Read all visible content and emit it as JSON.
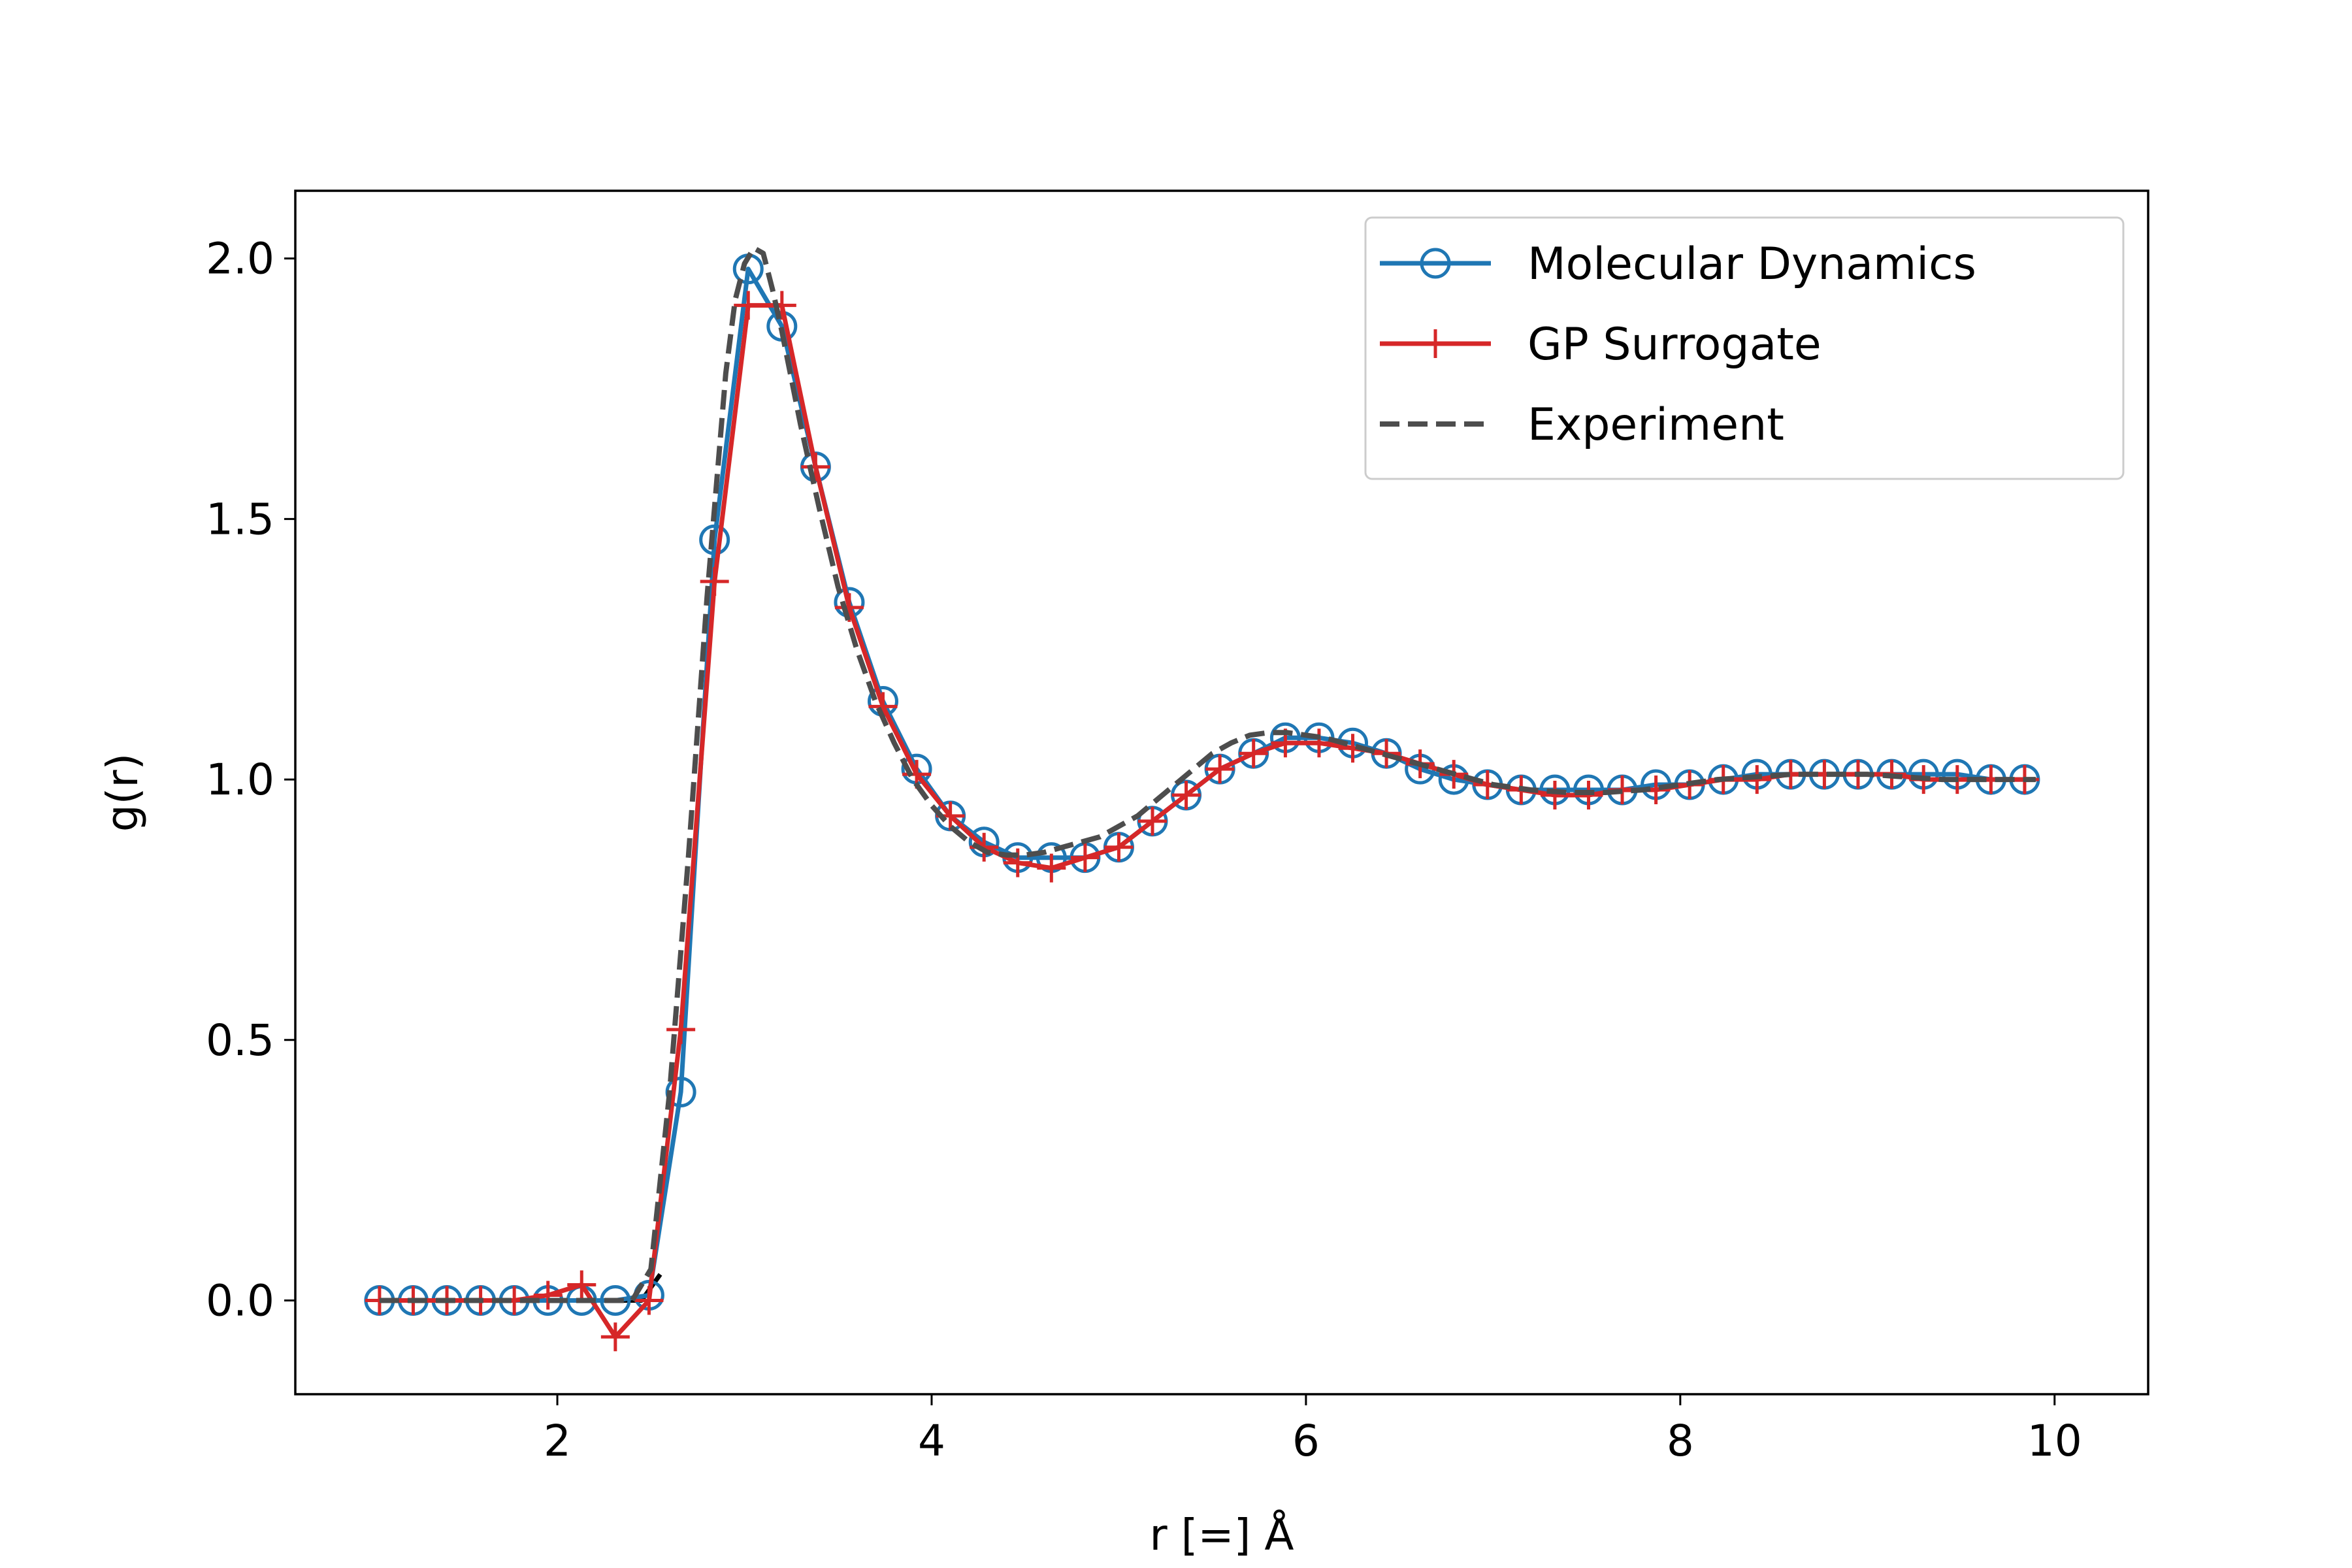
{
  "chart_data": {
    "type": "line",
    "title": "",
    "xlabel": "r [=] Å",
    "ylabel": "g(r)",
    "xlim": [
      0.6,
      10.5
    ],
    "ylim": [
      -0.18,
      2.13
    ],
    "xticks": [
      2,
      4,
      6,
      8,
      10
    ],
    "xtick_labels": [
      "2",
      "4",
      "6",
      "8",
      "10"
    ],
    "yticks": [
      0.0,
      0.5,
      1.0,
      1.5,
      2.0
    ],
    "ytick_labels": [
      "0.0",
      "0.5",
      "1.0",
      "1.5",
      "2.0"
    ],
    "grid": false,
    "legend_position": "upper right",
    "series": [
      {
        "name": "Molecular Dynamics",
        "color": "#1f77b4",
        "line_style": "solid",
        "marker": "open-circle",
        "x": [
          1.05,
          1.23,
          1.41,
          1.59,
          1.77,
          1.95,
          2.13,
          2.31,
          2.49,
          2.66,
          2.84,
          3.02,
          3.2,
          3.38,
          3.56,
          3.74,
          3.92,
          4.1,
          4.28,
          4.46,
          4.64,
          4.82,
          5.0,
          5.18,
          5.36,
          5.54,
          5.72,
          5.89,
          6.07,
          6.25,
          6.43,
          6.61,
          6.79,
          6.97,
          7.15,
          7.33,
          7.51,
          7.69,
          7.87,
          8.05,
          8.23,
          8.41,
          8.59,
          8.77,
          8.95,
          9.13,
          9.3,
          9.48,
          9.66,
          9.84
        ],
        "y": [
          0.0,
          0.0,
          0.0,
          0.0,
          0.0,
          0.0,
          0.0,
          0.0,
          0.01,
          0.4,
          1.46,
          1.98,
          1.87,
          1.6,
          1.34,
          1.15,
          1.02,
          0.93,
          0.88,
          0.85,
          0.85,
          0.85,
          0.87,
          0.92,
          0.97,
          1.02,
          1.05,
          1.08,
          1.08,
          1.07,
          1.05,
          1.02,
          1.0,
          0.99,
          0.98,
          0.98,
          0.98,
          0.98,
          0.99,
          0.99,
          1.0,
          1.01,
          1.01,
          1.01,
          1.01,
          1.01,
          1.01,
          1.01,
          1.0,
          1.0
        ]
      },
      {
        "name": "GP Surrogate",
        "color": "#d62728",
        "line_style": "solid",
        "marker": "plus",
        "x": [
          1.05,
          1.23,
          1.41,
          1.59,
          1.77,
          1.95,
          2.13,
          2.31,
          2.49,
          2.66,
          2.84,
          3.02,
          3.2,
          3.38,
          3.56,
          3.74,
          3.92,
          4.1,
          4.28,
          4.46,
          4.64,
          4.82,
          5.0,
          5.18,
          5.36,
          5.54,
          5.72,
          5.89,
          6.07,
          6.25,
          6.43,
          6.61,
          6.79,
          6.97,
          7.15,
          7.33,
          7.51,
          7.69,
          7.87,
          8.05,
          8.23,
          8.41,
          8.59,
          8.77,
          8.95,
          9.13,
          9.3,
          9.48,
          9.66,
          9.84
        ],
        "y": [
          0.0,
          0.0,
          0.0,
          0.0,
          0.0,
          0.01,
          0.03,
          -0.07,
          0.0,
          0.52,
          1.38,
          1.91,
          1.91,
          1.6,
          1.33,
          1.14,
          1.01,
          0.93,
          0.87,
          0.84,
          0.83,
          0.85,
          0.87,
          0.92,
          0.97,
          1.02,
          1.05,
          1.07,
          1.07,
          1.06,
          1.05,
          1.03,
          1.01,
          0.99,
          0.98,
          0.97,
          0.97,
          0.98,
          0.98,
          0.99,
          1.0,
          1.0,
          1.01,
          1.01,
          1.01,
          1.01,
          1.0,
          1.0,
          1.0,
          1.0
        ]
      },
      {
        "name": "Experiment",
        "color": "#4d4d4d",
        "line_style": "dashed",
        "marker": "none",
        "x": [
          1.05,
          1.5,
          2.0,
          2.3,
          2.4,
          2.5,
          2.6,
          2.7,
          2.8,
          2.9,
          2.95,
          3.0,
          3.05,
          3.1,
          3.15,
          3.2,
          3.3,
          3.4,
          3.5,
          3.6,
          3.7,
          3.8,
          3.9,
          4.0,
          4.1,
          4.2,
          4.3,
          4.4,
          4.5,
          4.6,
          4.7,
          4.8,
          4.9,
          5.0,
          5.1,
          5.2,
          5.3,
          5.4,
          5.5,
          5.6,
          5.7,
          5.8,
          5.9,
          6.0,
          6.1,
          6.2,
          6.3,
          6.4,
          6.5,
          6.6,
          6.7,
          6.8,
          6.9,
          7.0,
          7.2,
          7.4,
          7.6,
          7.8,
          8.0,
          8.2,
          8.4,
          8.6,
          8.8,
          9.0,
          9.2,
          9.4,
          9.6,
          9.9
        ],
        "y": [
          0.0,
          0.0,
          0.0,
          0.0,
          0.0,
          0.06,
          0.4,
          0.85,
          1.35,
          1.78,
          1.92,
          1.99,
          2.02,
          2.01,
          1.94,
          1.86,
          1.68,
          1.52,
          1.37,
          1.25,
          1.15,
          1.07,
          1.0,
          0.95,
          0.91,
          0.88,
          0.86,
          0.855,
          0.855,
          0.86,
          0.87,
          0.88,
          0.89,
          0.91,
          0.93,
          0.96,
          0.99,
          1.02,
          1.05,
          1.07,
          1.085,
          1.09,
          1.09,
          1.085,
          1.08,
          1.07,
          1.06,
          1.05,
          1.04,
          1.03,
          1.02,
          1.01,
          1.0,
          0.99,
          0.98,
          0.975,
          0.975,
          0.98,
          0.99,
          1.0,
          1.005,
          1.01,
          1.01,
          1.01,
          1.005,
          1.0,
          1.0,
          1.0
        ]
      },
      {
        "color": "#000000",
        "line_style": "solid",
        "marker": "none",
        "x": [
          1.05,
          1.5,
          2.0,
          2.3,
          2.45,
          2.55
        ],
        "y": [
          0.0,
          0.0,
          0.0,
          0.0,
          0.0,
          0.05
        ]
      }
    ]
  }
}
